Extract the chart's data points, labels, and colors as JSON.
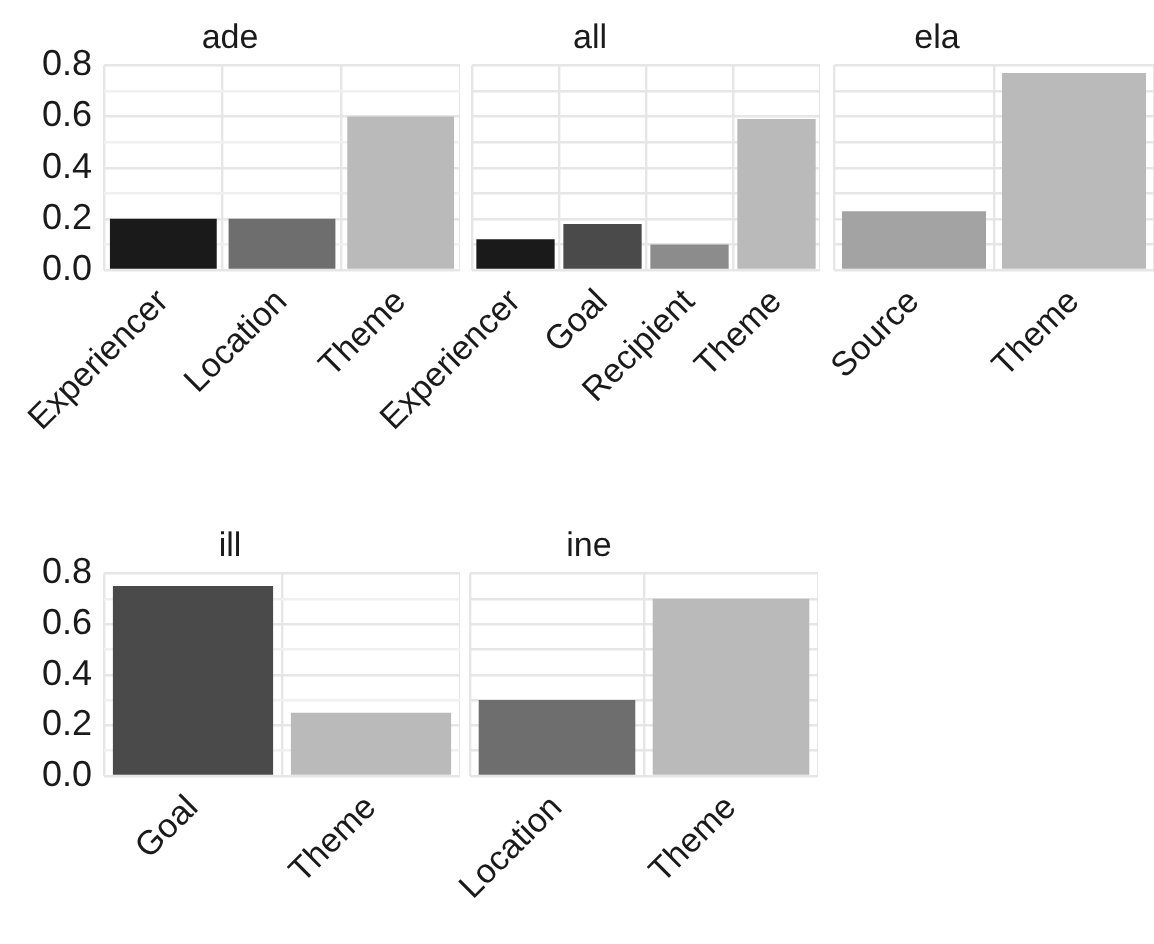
{
  "chart_data": [
    {
      "type": "bar",
      "title": "ade",
      "categories": [
        "Experiencer",
        "Location",
        "Theme"
      ],
      "values": [
        0.2,
        0.2,
        0.6
      ],
      "colors": [
        "#1a1a1a",
        "#6e6e6e",
        "#bababa"
      ],
      "ylim": [
        0,
        0.8
      ],
      "yticks": [
        {
          "value": 0,
          "label": "0.0"
        },
        {
          "value": 0.1,
          "label": null
        },
        0.2,
        {
          "value": 0.3,
          "label": null
        },
        0.4,
        {
          "value": 0.5,
          "label": null
        },
        0.6,
        {
          "value": 0.7,
          "label": null
        },
        0.8
      ],
      "grid": true
    },
    {
      "type": "bar",
      "title": "all",
      "categories": [
        "Experiencer",
        "Goal",
        "Recipient",
        "Theme"
      ],
      "values": [
        0.12,
        0.18,
        0.1,
        0.59
      ],
      "colors": [
        "#1a1a1a",
        "#4a4a4a",
        "#8c8c8c",
        "#bababa"
      ],
      "ylim": [
        0,
        0.8
      ],
      "yticks": [
        0,
        0.1,
        0.2,
        0.3,
        0.4,
        0.5,
        0.6,
        0.7,
        0.8
      ],
      "grid": true,
      "tick_labels": "x"
    },
    {
      "type": "bar",
      "title": "ela",
      "categories": [
        "Source",
        "Theme"
      ],
      "values": [
        0.23,
        0.77
      ],
      "colors": [
        "#a3a3a3",
        "#bababa"
      ],
      "ylim": [
        0,
        0.8
      ],
      "yticks": [
        0,
        0.1,
        0.2,
        0.3,
        0.4,
        0.5,
        0.6,
        0.7,
        0.8
      ],
      "grid": true,
      "tick_labels": "x"
    },
    {
      "type": "bar",
      "title": "ill",
      "categories": [
        "Goal",
        "Theme"
      ],
      "values": [
        0.75,
        0.25
      ],
      "colors": [
        "#4a4a4a",
        "#bababa"
      ],
      "ylim": [
        0,
        0.8
      ],
      "yticks": [
        {
          "value": 0,
          "label": "0.0"
        },
        {
          "value": 0.1,
          "label": null
        },
        0.2,
        {
          "value": 0.3,
          "label": null
        },
        0.4,
        {
          "value": 0.5,
          "label": null
        },
        0.6,
        {
          "value": 0.7,
          "label": null
        },
        0.8
      ],
      "grid": true
    },
    {
      "type": "bar",
      "title": "ine",
      "categories": [
        "Location",
        "Theme"
      ],
      "values": [
        0.3,
        0.7
      ],
      "colors": [
        "#6e6e6e",
        "#bababa"
      ],
      "ylim": [
        0,
        0.8
      ],
      "yticks": [
        0,
        0.1,
        0.2,
        0.3,
        0.4,
        0.5,
        0.6,
        0.7,
        0.8
      ],
      "grid": true,
      "tick_labels": "x"
    }
  ]
}
